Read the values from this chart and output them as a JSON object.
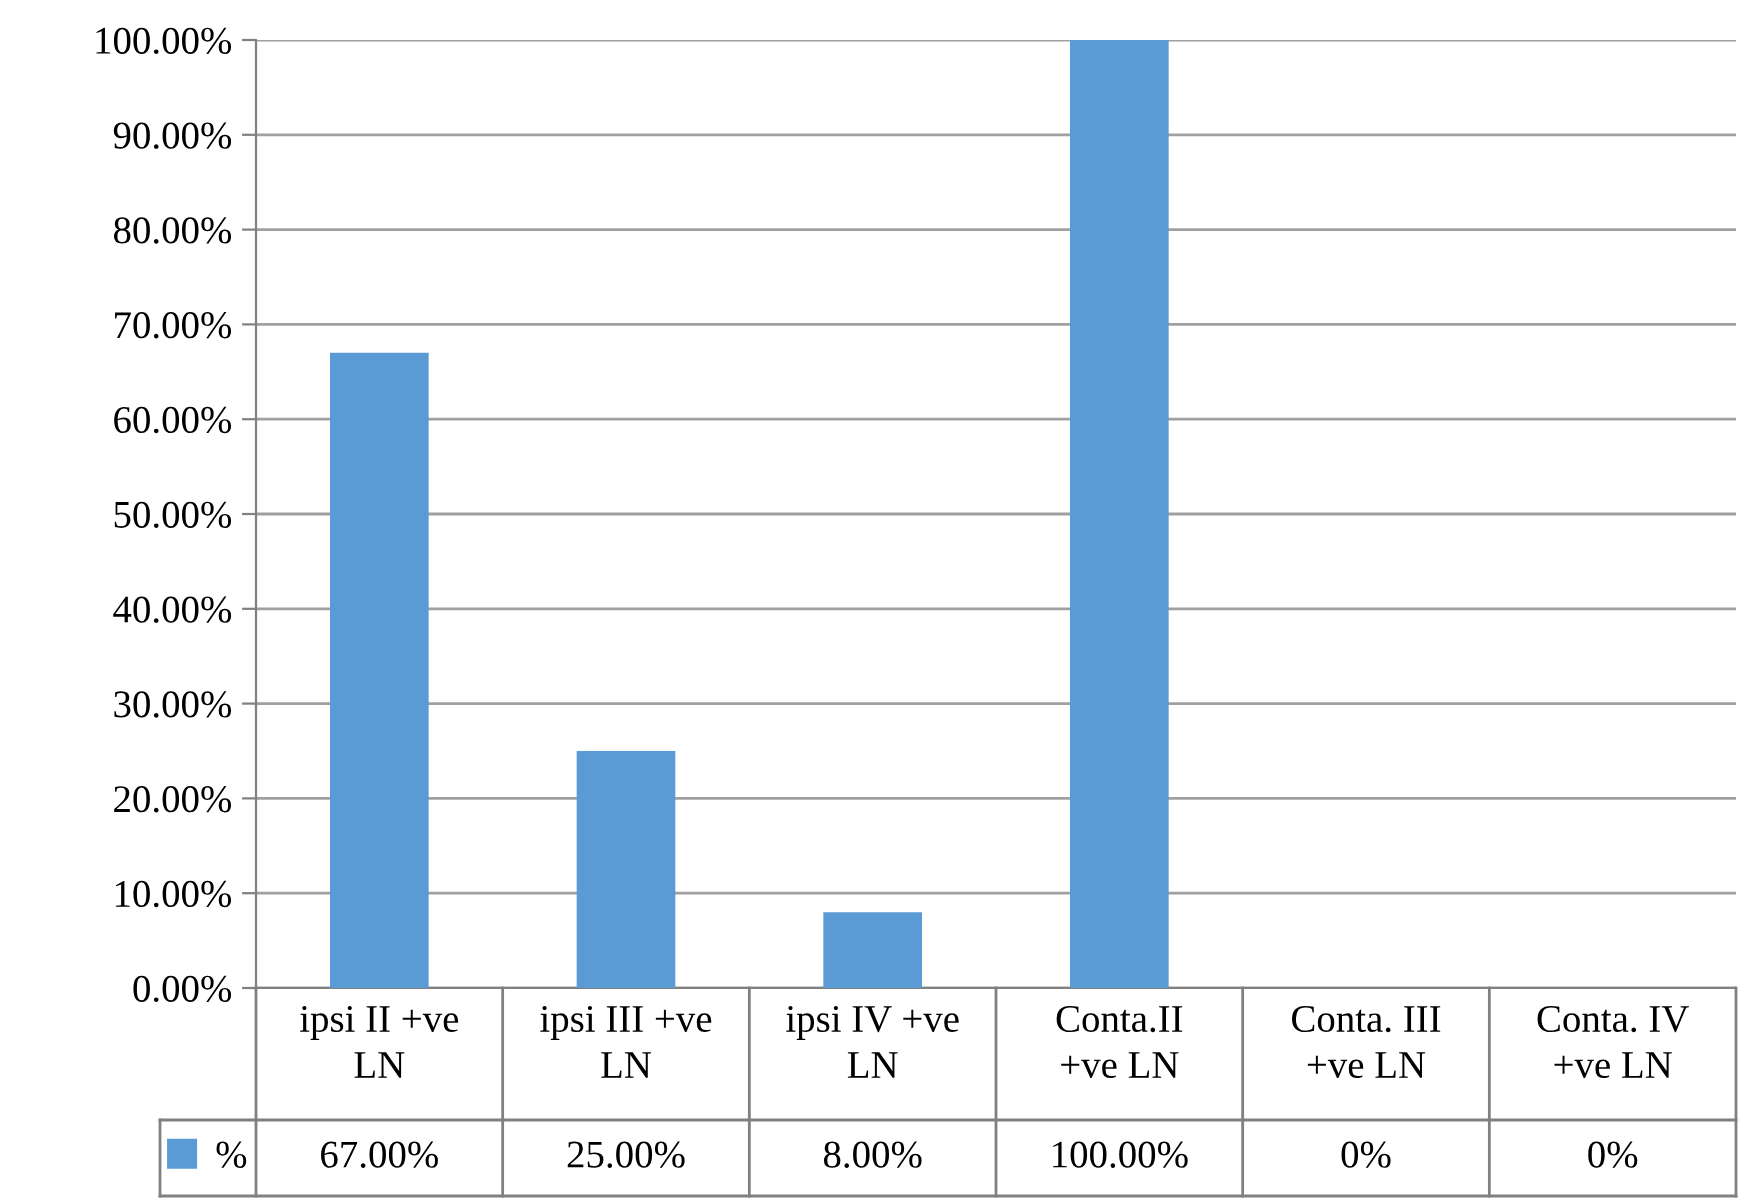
{
  "chart_data": {
    "type": "bar",
    "categories": [
      "ipsi II +ve\nLN",
      "ipsi III +ve\nLN",
      "ipsi IV +ve\nLN",
      "Conta.II\n+ve LN",
      "Conta. III\n+ve LN",
      "Conta. IV\n+ve LN"
    ],
    "series": [
      {
        "name": "%",
        "color": "#5b9bd5",
        "values": [
          67,
          25,
          8,
          100,
          0,
          0
        ],
        "value_labels": [
          "67.00%",
          "25.00%",
          "8.00%",
          "100.00%",
          "0%",
          "0%"
        ]
      }
    ],
    "ylim": [
      0,
      100
    ],
    "yticks": [
      {
        "value": 0,
        "label": "0.00%"
      },
      {
        "value": 10,
        "label": "10.00%"
      },
      {
        "value": 20,
        "label": "20.00%"
      },
      {
        "value": 30,
        "label": "30.00%"
      },
      {
        "value": 40,
        "label": "40.00%"
      },
      {
        "value": 50,
        "label": "50.00%"
      },
      {
        "value": 60,
        "label": "60.00%"
      },
      {
        "value": 70,
        "label": "70.00%"
      },
      {
        "value": 80,
        "label": "80.00%"
      },
      {
        "value": 90,
        "label": "90.00%"
      },
      {
        "value": 100,
        "label": "100.00%"
      }
    ],
    "grid": "y",
    "legend": "bottom left"
  }
}
